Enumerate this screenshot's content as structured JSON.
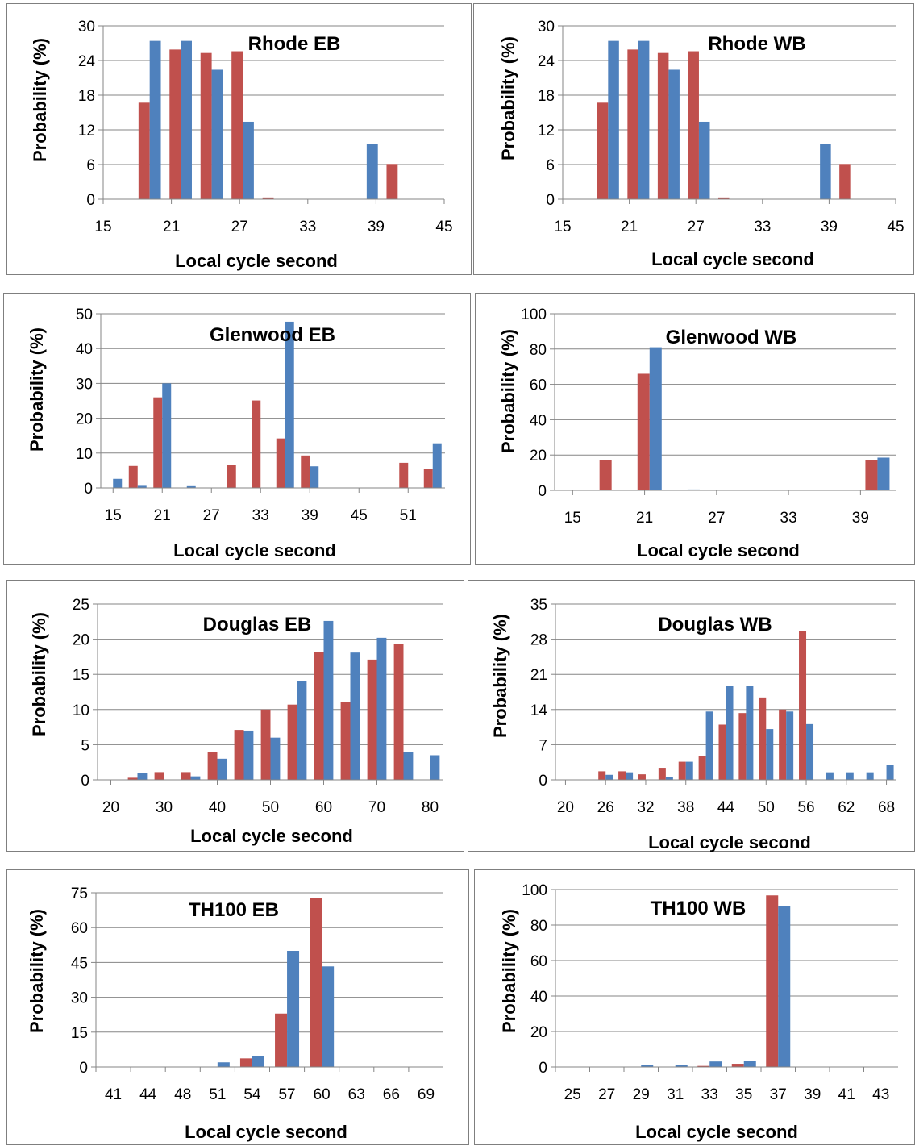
{
  "series_colors": {
    "series_1": "#c0504d",
    "series_2": "#4f81bd"
  },
  "chart_data": [
    {
      "type": "bar",
      "title": "Rhode EB",
      "xlabel": "Local cycle second",
      "ylabel": "Probability (%)",
      "ylim": [
        0,
        30
      ],
      "yticks": [
        0,
        6,
        12,
        18,
        24,
        30
      ],
      "x_tick_labels": [
        "15",
        "21",
        "27",
        "33",
        "39",
        "45"
      ],
      "categories": [
        "15",
        "18",
        "21",
        "24",
        "27",
        "30",
        "33",
        "36",
        "39",
        "42",
        "45"
      ],
      "series": [
        {
          "values": [
            0,
            16.7,
            25.9,
            25.3,
            25.6,
            0.3,
            0,
            0,
            0,
            6.1,
            0
          ]
        },
        {
          "values": [
            0,
            27.4,
            27.4,
            22.4,
            13.4,
            0,
            0,
            0,
            9.5,
            0,
            0
          ]
        }
      ],
      "grid": true
    },
    {
      "type": "bar",
      "title": "Rhode WB",
      "xlabel": "Local cycle second",
      "ylabel": "Probability (%)",
      "ylim": [
        0,
        30
      ],
      "yticks": [
        0,
        6,
        12,
        18,
        24,
        30
      ],
      "x_tick_labels": [
        "15",
        "21",
        "27",
        "33",
        "39",
        "45"
      ],
      "categories": [
        "15",
        "18",
        "21",
        "24",
        "27",
        "30",
        "33",
        "36",
        "39",
        "42",
        "45"
      ],
      "series": [
        {
          "values": [
            0,
            16.7,
            25.9,
            25.3,
            25.6,
            0.3,
            0,
            0,
            0,
            6.1,
            0
          ]
        },
        {
          "values": [
            0,
            27.4,
            27.4,
            22.4,
            13.4,
            0,
            0,
            0,
            9.5,
            0,
            0
          ]
        }
      ],
      "grid": true
    },
    {
      "type": "bar",
      "title": "Glenwood EB",
      "xlabel": "Local cycle second",
      "ylabel": "Probability (%)",
      "ylim": [
        0,
        50
      ],
      "yticks": [
        0,
        10,
        20,
        30,
        40,
        50
      ],
      "x_tick_labels": [
        "15",
        "21",
        "27",
        "33",
        "39",
        "45",
        "51"
      ],
      "categories": [
        "15",
        "18",
        "21",
        "24",
        "27",
        "30",
        "33",
        "36",
        "39",
        "42",
        "45",
        "48",
        "51",
        "54"
      ],
      "series": [
        {
          "values": [
            0,
            6.3,
            26,
            0,
            0,
            6.6,
            25.1,
            14.2,
            9.3,
            0,
            0,
            0,
            7.2,
            5.4
          ]
        },
        {
          "values": [
            2.6,
            0.6,
            30,
            0.5,
            0,
            0,
            0,
            47.7,
            6.2,
            0,
            0,
            0,
            0,
            12.8
          ]
        }
      ],
      "grid": true
    },
    {
      "type": "bar",
      "title": "Glenwood WB",
      "xlabel": "Local cycle second",
      "ylabel": "Probability (%)",
      "ylim": [
        0,
        100
      ],
      "yticks": [
        0,
        20,
        40,
        60,
        80,
        100
      ],
      "x_tick_labels": [
        "15",
        "21",
        "27",
        "33",
        "39"
      ],
      "categories": [
        "15",
        "18",
        "21",
        "24",
        "27",
        "30",
        "33",
        "36",
        "39"
      ],
      "series": [
        {
          "values": [
            0,
            17,
            66,
            0,
            0,
            0,
            0,
            0,
            17
          ]
        },
        {
          "values": [
            0,
            0,
            81,
            0.5,
            0,
            0,
            0,
            0,
            18.5
          ]
        }
      ],
      "grid": true
    },
    {
      "type": "bar",
      "title": "Douglas EB",
      "xlabel": "Local cycle second",
      "ylabel": "Probability (%)",
      "ylim": [
        0,
        25
      ],
      "yticks": [
        0,
        5,
        10,
        15,
        20,
        25
      ],
      "x_tick_labels": [
        "20",
        "30",
        "40",
        "50",
        "60",
        "70",
        "80"
      ],
      "categories": [
        "20",
        "25",
        "30",
        "35",
        "40",
        "45",
        "50",
        "55",
        "60",
        "65",
        "70",
        "75",
        "80"
      ],
      "series": [
        {
          "values": [
            0,
            0.3,
            1.1,
            1.1,
            3.9,
            7.1,
            10,
            10.7,
            18.2,
            11.1,
            17.1,
            19.3,
            0
          ]
        },
        {
          "values": [
            0,
            1,
            0,
            0.5,
            3,
            7,
            6,
            14.1,
            22.6,
            18.1,
            20.2,
            4,
            3.5
          ]
        }
      ],
      "grid": true
    },
    {
      "type": "bar",
      "title": "Douglas WB",
      "xlabel": "Local cycle second",
      "ylabel": "Probability (%)",
      "ylim": [
        0,
        35
      ],
      "yticks": [
        0,
        7,
        14,
        21,
        28,
        35
      ],
      "x_tick_labels": [
        "20",
        "26",
        "32",
        "38",
        "44",
        "50",
        "56",
        "62",
        "68"
      ],
      "categories": [
        "20",
        "23",
        "26",
        "29",
        "32",
        "35",
        "38",
        "41",
        "44",
        "47",
        "50",
        "53",
        "56",
        "59",
        "62",
        "65",
        "68"
      ],
      "series": [
        {
          "values": [
            0,
            0,
            1.7,
            1.7,
            1.1,
            2.4,
            3.6,
            4.7,
            11,
            13.3,
            16.4,
            14,
            29.7,
            0,
            0,
            0,
            0
          ]
        },
        {
          "values": [
            0,
            0,
            1,
            1.5,
            0,
            0.5,
            3.6,
            13.6,
            18.7,
            18.7,
            10.1,
            13.6,
            11.1,
            1.5,
            1.5,
            1.5,
            3
          ]
        }
      ],
      "grid": true
    },
    {
      "type": "bar",
      "title": "TH100 EB",
      "xlabel": "Local cycle second",
      "ylabel": "Probability (%)",
      "ylim": [
        0,
        75
      ],
      "yticks": [
        0,
        15,
        30,
        45,
        60,
        75
      ],
      "x_tick_labels": [
        "41",
        "44",
        "48",
        "51",
        "54",
        "57",
        "60",
        "63",
        "66",
        "69"
      ],
      "categories": [
        "41",
        "44",
        "48",
        "51",
        "54",
        "57",
        "60",
        "63",
        "66",
        "69"
      ],
      "series": [
        {
          "values": [
            0,
            0,
            0,
            0,
            3.7,
            23,
            72.7,
            0,
            0,
            0
          ]
        },
        {
          "values": [
            0,
            0,
            0,
            2,
            4.8,
            50,
            43.3,
            0,
            0,
            0
          ]
        }
      ],
      "grid": true
    },
    {
      "type": "bar",
      "title": "TH100 WB",
      "xlabel": "Local cycle second",
      "ylabel": "Probability (%)",
      "ylim": [
        0,
        100
      ],
      "yticks": [
        0,
        20,
        40,
        60,
        80,
        100
      ],
      "x_tick_labels": [
        "25",
        "27",
        "29",
        "31",
        "33",
        "35",
        "37",
        "39",
        "41",
        "43"
      ],
      "categories": [
        "25",
        "27",
        "29",
        "31",
        "33",
        "35",
        "37",
        "39",
        "41",
        "43"
      ],
      "series": [
        {
          "values": [
            0,
            0,
            0,
            0,
            0.6,
            1.8,
            96.7,
            0,
            0,
            0
          ]
        },
        {
          "values": [
            0,
            0,
            1,
            1.3,
            3.1,
            3.5,
            90.7,
            0,
            0,
            0
          ]
        }
      ],
      "grid": true
    }
  ]
}
